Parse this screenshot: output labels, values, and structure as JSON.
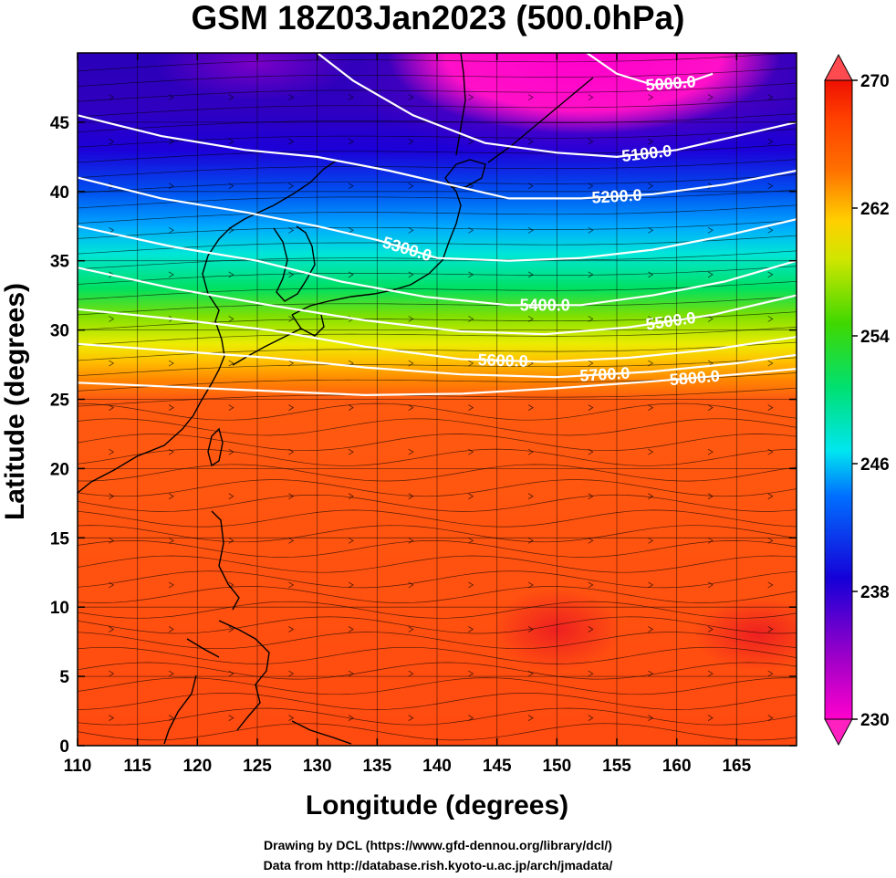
{
  "title": "GSM 18Z03Jan2023 (500.0hPa)",
  "xlabel": "Longitude (degrees)",
  "ylabel": "Latitude  (degrees)",
  "credits": [
    "Drawing by DCL (https://www.gfd-dennou.org/library/dcl/)",
    "Data from http://database.rish.kyoto-u.ac.jp/arch/jmadata/"
  ],
  "chart_data": {
    "type": "heatmap",
    "xlim": [
      110,
      170
    ],
    "ylim": [
      0,
      50
    ],
    "x_ticks": [
      110,
      115,
      120,
      125,
      130,
      135,
      140,
      145,
      150,
      155,
      160,
      165
    ],
    "y_ticks": [
      0,
      5,
      10,
      15,
      20,
      25,
      30,
      35,
      40,
      45
    ],
    "grid": true,
    "colorbar": {
      "min": 230,
      "max": 270,
      "ticks": [
        230,
        238,
        246,
        254,
        262,
        270
      ],
      "colors": [
        "#ff00cc",
        "#8a00c8",
        "#1500d8",
        "#0070ff",
        "#00e6f0",
        "#00e070",
        "#30d800",
        "#c8e600",
        "#ffd000",
        "#ff7000",
        "#ff4000",
        "#ee1000"
      ],
      "placement": "right"
    },
    "temperature_field": [
      {
        "lat": 0,
        "value": 268
      },
      {
        "lat": 10,
        "value": 268
      },
      {
        "lat": 20,
        "value": 268
      },
      {
        "lat": 25,
        "value": 266
      },
      {
        "lat": 28,
        "value": 262
      },
      {
        "lat": 31,
        "value": 258
      },
      {
        "lat": 34,
        "value": 254
      },
      {
        "lat": 37,
        "value": 249
      },
      {
        "lat": 40,
        "value": 244
      },
      {
        "lat": 43,
        "value": 239
      },
      {
        "lat": 46,
        "value": 236
      },
      {
        "lat": 50,
        "value": 233
      }
    ],
    "contours": [
      {
        "label": "5000.0",
        "points": [
          [
            152.5,
            50
          ],
          [
            155,
            48.5
          ],
          [
            158,
            47.7
          ],
          [
            161,
            47.9
          ],
          [
            163,
            48.5
          ]
        ]
      },
      {
        "label": "5100.0",
        "points": [
          [
            130,
            50
          ],
          [
            133,
            48
          ],
          [
            138,
            45.5
          ],
          [
            144,
            43.5
          ],
          [
            150,
            42.8
          ],
          [
            155,
            42.5
          ],
          [
            160,
            43
          ],
          [
            165,
            44
          ],
          [
            170,
            45
          ]
        ]
      },
      {
        "label": "5200.0",
        "points": [
          [
            110,
            45.5
          ],
          [
            117,
            44
          ],
          [
            124,
            43
          ],
          [
            130,
            42.5
          ],
          [
            136,
            41.5
          ],
          [
            141,
            40.5
          ],
          [
            146,
            39.5
          ],
          [
            152,
            39.5
          ],
          [
            158,
            39.8
          ],
          [
            164,
            40.5
          ],
          [
            170,
            41.5
          ]
        ]
      },
      {
        "label": "5300.0",
        "points": [
          [
            110,
            41
          ],
          [
            117,
            39.5
          ],
          [
            124,
            38.5
          ],
          [
            130,
            37.5
          ],
          [
            135,
            36.5
          ],
          [
            140,
            35.2
          ],
          [
            146,
            35
          ],
          [
            152,
            35.2
          ],
          [
            158,
            35.8
          ],
          [
            164,
            36.8
          ],
          [
            170,
            38
          ]
        ]
      },
      {
        "label": "5400.0",
        "points": [
          [
            110,
            37.5
          ],
          [
            118,
            36
          ],
          [
            125,
            35
          ],
          [
            132,
            33.5
          ],
          [
            139,
            32.4
          ],
          [
            146,
            31.8
          ],
          [
            152,
            31.8
          ],
          [
            158,
            32.5
          ],
          [
            164,
            33.5
          ],
          [
            170,
            35
          ]
        ]
      },
      {
        "label": "5500.0",
        "points": [
          [
            110,
            34.5
          ],
          [
            118,
            33
          ],
          [
            126,
            31.8
          ],
          [
            134,
            30.7
          ],
          [
            142,
            29.9
          ],
          [
            149,
            29.7
          ],
          [
            156,
            30.2
          ],
          [
            163,
            31.1
          ],
          [
            170,
            32.5
          ]
        ]
      },
      {
        "label": "5600.0",
        "points": [
          [
            110,
            31.5
          ],
          [
            118,
            30.8
          ],
          [
            126,
            30
          ],
          [
            134,
            28.8
          ],
          [
            142,
            27.9
          ],
          [
            149,
            27.7
          ],
          [
            156,
            28
          ],
          [
            163,
            28.6
          ],
          [
            170,
            29.5
          ]
        ]
      },
      {
        "label": "5700.0",
        "points": [
          [
            110,
            29
          ],
          [
            118,
            28.5
          ],
          [
            126,
            28
          ],
          [
            134,
            27.3
          ],
          [
            142,
            26.8
          ],
          [
            150,
            26.6
          ],
          [
            158,
            27
          ],
          [
            165,
            27.6
          ],
          [
            170,
            28.2
          ]
        ]
      },
      {
        "label": "5800.0",
        "points": [
          [
            110,
            26.2
          ],
          [
            118,
            25.9
          ],
          [
            126,
            25.6
          ],
          [
            134,
            25.3
          ],
          [
            142,
            25.4
          ],
          [
            150,
            25.8
          ],
          [
            158,
            26.3
          ],
          [
            165,
            26.8
          ],
          [
            170,
            27.2
          ]
        ]
      }
    ]
  }
}
